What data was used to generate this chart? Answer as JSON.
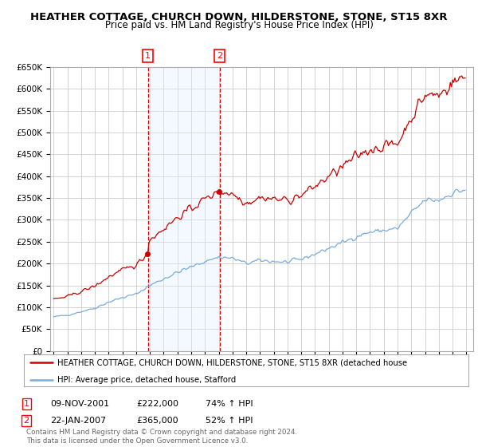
{
  "title": "HEATHER COTTAGE, CHURCH DOWN, HILDERSTONE, STONE, ST15 8XR",
  "subtitle": "Price paid vs. HM Land Registry's House Price Index (HPI)",
  "ylabel_ticks": [
    "£0",
    "£50K",
    "£100K",
    "£150K",
    "£200K",
    "£250K",
    "£300K",
    "£350K",
    "£400K",
    "£450K",
    "£500K",
    "£550K",
    "£600K",
    "£650K"
  ],
  "ytick_values": [
    0,
    50000,
    100000,
    150000,
    200000,
    250000,
    300000,
    350000,
    400000,
    450000,
    500000,
    550000,
    600000,
    650000
  ],
  "xlim_start": 1994.75,
  "xlim_end": 2025.5,
  "ylim_min": 0,
  "ylim_max": 650000,
  "sale1_date": 2001.86,
  "sale1_price": 222000,
  "sale2_date": 2007.06,
  "sale2_price": 365000,
  "vline1_x": 2001.86,
  "vline2_x": 2007.06,
  "vline_color": "#cc0000",
  "hpi_line_color": "#7aacdc",
  "price_line_color": "#cc0000",
  "highlight_fill": "#ddeeff",
  "legend_line1": "HEATHER COTTAGE, CHURCH DOWN, HILDERSTONE, STONE, ST15 8XR (detached house",
  "legend_line2": "HPI: Average price, detached house, Stafford",
  "background_color": "#ffffff",
  "grid_color": "#cccccc",
  "title_fontsize": 9.5,
  "subtitle_fontsize": 8.5,
  "tick_fontsize": 7.5
}
